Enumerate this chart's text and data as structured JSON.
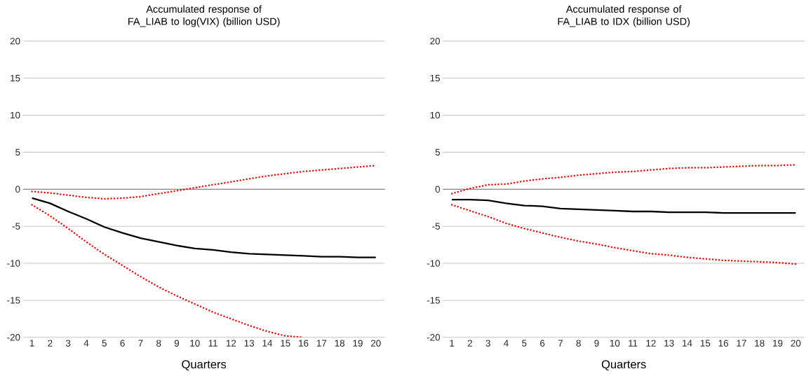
{
  "chart_data": [
    {
      "type": "line",
      "title": "Accumulated response of FA_LIAB to log(VIX) (billion USD)",
      "xlabel": "Quarters",
      "categories": [
        "1",
        "2",
        "3",
        "4",
        "5",
        "6",
        "7",
        "8",
        "9",
        "10",
        "11",
        "12",
        "13",
        "14",
        "15",
        "16",
        "17",
        "18",
        "19",
        "20"
      ],
      "ylim": [
        -20,
        20
      ],
      "yticks": [
        -20,
        -15,
        -10,
        -5,
        0,
        5,
        10,
        15,
        20
      ],
      "grid": "y",
      "series": [
        {
          "color": "#000000",
          "line_style": "solid",
          "values": [
            -1.2,
            -1.9,
            -3.0,
            -4.0,
            -5.1,
            -5.9,
            -6.6,
            -7.1,
            -7.6,
            -8.0,
            -8.2,
            -8.5,
            -8.7,
            -8.8,
            -8.9,
            -9.0,
            -9.1,
            -9.1,
            -9.2,
            -9.2
          ]
        },
        {
          "color": "#ff0000",
          "line_style": "dotted",
          "values": [
            -0.3,
            -0.5,
            -0.8,
            -1.1,
            -1.3,
            -1.2,
            -1.0,
            -0.6,
            -0.2,
            0.2,
            0.6,
            1.0,
            1.4,
            1.8,
            2.1,
            2.4,
            2.6,
            2.8,
            3.0,
            3.2
          ]
        },
        {
          "color": "#ff0000",
          "line_style": "dotted",
          "values": [
            -2.1,
            -3.6,
            -5.3,
            -7.1,
            -8.8,
            -10.3,
            -11.8,
            -13.2,
            -14.4,
            -15.5,
            -16.6,
            -17.5,
            -18.4,
            -19.2,
            -19.8,
            -20.0,
            null,
            null,
            null,
            null
          ]
        }
      ]
    },
    {
      "type": "line",
      "title": "Accumulated response of FA_LIAB to IDX (billion USD)",
      "xlabel": "Quarters",
      "categories": [
        "1",
        "2",
        "3",
        "4",
        "5",
        "6",
        "7",
        "8",
        "9",
        "10",
        "11",
        "12",
        "13",
        "14",
        "15",
        "16",
        "17",
        "18",
        "19",
        "20"
      ],
      "ylim": [
        -20,
        20
      ],
      "yticks": [
        -20,
        -15,
        -10,
        -5,
        0,
        5,
        10,
        15,
        20
      ],
      "grid": "y",
      "series": [
        {
          "color": "#000000",
          "line_style": "solid",
          "values": [
            -1.4,
            -1.4,
            -1.5,
            -1.9,
            -2.2,
            -2.3,
            -2.6,
            -2.7,
            -2.8,
            -2.9,
            -3.0,
            -3.0,
            -3.1,
            -3.1,
            -3.1,
            -3.2,
            -3.2,
            -3.2,
            -3.2,
            -3.2
          ]
        },
        {
          "color": "#ff0000",
          "line_style": "dotted",
          "values": [
            -0.6,
            0.1,
            0.6,
            0.7,
            1.1,
            1.4,
            1.6,
            1.9,
            2.1,
            2.3,
            2.4,
            2.6,
            2.8,
            2.9,
            2.9,
            3.0,
            3.1,
            3.2,
            3.2,
            3.3
          ]
        },
        {
          "color": "#ff0000",
          "line_style": "dotted",
          "values": [
            -2.1,
            -2.9,
            -3.7,
            -4.6,
            -5.3,
            -5.9,
            -6.5,
            -7.0,
            -7.4,
            -7.9,
            -8.3,
            -8.7,
            -8.9,
            -9.2,
            -9.4,
            -9.6,
            -9.7,
            -9.8,
            -9.9,
            -10.1
          ]
        }
      ]
    }
  ]
}
